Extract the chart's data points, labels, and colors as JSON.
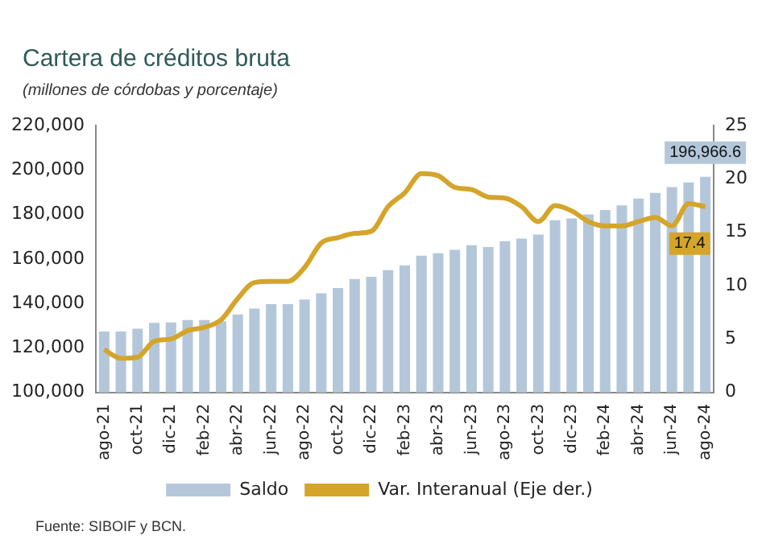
{
  "chart_data": {
    "type": "bar",
    "title": "Cartera de créditos bruta",
    "subtitle": "(millones de córdobas y porcentaje)",
    "categories": [
      "ago-21",
      null,
      "oct-21",
      null,
      "dic-21",
      null,
      "feb-22",
      null,
      "abr-22",
      null,
      "jun-22",
      null,
      "ago-22",
      null,
      "oct-22",
      null,
      "dic-22",
      null,
      "feb-23",
      null,
      "abr-23",
      null,
      "jun-23",
      null,
      "ago-23",
      null,
      "oct-23",
      null,
      "dic-23",
      null,
      "feb-24",
      null,
      "abr-24",
      null,
      "jun-24",
      null,
      "ago-24"
    ],
    "series": [
      {
        "name": "Saldo",
        "type": "bar",
        "color": "#b4c7da",
        "values": [
          127400,
          127400,
          128700,
          131300,
          131500,
          132600,
          132600,
          132000,
          135100,
          137700,
          139700,
          139700,
          141800,
          144600,
          146900,
          151000,
          152000,
          155000,
          157200,
          161500,
          162600,
          164100,
          166200,
          165400,
          168000,
          169200,
          171000,
          177400,
          178200,
          180000,
          182000,
          184100,
          187200,
          189700,
          192300,
          194400,
          196966.6
        ],
        "value_labels": [
          null,
          null,
          null,
          null,
          null,
          null,
          null,
          null,
          null,
          null,
          null,
          null,
          null,
          null,
          null,
          null,
          null,
          null,
          null,
          null,
          null,
          null,
          null,
          null,
          null,
          null,
          null,
          null,
          null,
          null,
          null,
          null,
          null,
          null,
          null,
          null,
          "196,966.6"
        ]
      },
      {
        "name": "Var. Interanual (Eje der.)",
        "type": "line",
        "axis": "y2",
        "color": "#d4a52a",
        "values": [
          4.0,
          3.2,
          3.3,
          4.8,
          5.0,
          5.8,
          6.1,
          6.8,
          8.8,
          10.3,
          10.4,
          10.4,
          11.7,
          14.0,
          14.5,
          14.9,
          15.1,
          17.4,
          18.7,
          20.5,
          20.3,
          19.2,
          19.0,
          18.3,
          18.2,
          17.4,
          16.0,
          17.5,
          17.0,
          16.0,
          15.6,
          15.6,
          16.0,
          16.4,
          15.6,
          17.7,
          17.4
        ],
        "value_labels": [
          null,
          null,
          null,
          null,
          null,
          null,
          null,
          null,
          null,
          null,
          null,
          null,
          null,
          null,
          null,
          null,
          null,
          null,
          null,
          null,
          null,
          null,
          null,
          null,
          null,
          null,
          null,
          null,
          null,
          null,
          null,
          null,
          null,
          null,
          null,
          null,
          "17.4"
        ]
      }
    ],
    "ylim": [
      100000,
      220000
    ],
    "yticks": [
      {
        "value": 100000,
        "label": "100,000"
      },
      {
        "value": 120000,
        "label": "120,000"
      },
      {
        "value": 140000,
        "label": "140,000"
      },
      {
        "value": 160000,
        "label": "160,000"
      },
      {
        "value": 180000,
        "label": "180,000"
      },
      {
        "value": 200000,
        "label": "200,000"
      },
      {
        "value": 220000,
        "label": "220,000"
      }
    ],
    "y2lim": [
      0,
      25
    ],
    "y2ticks": [
      0,
      5,
      10,
      15,
      20,
      25
    ],
    "grid": false,
    "legend": "bottom",
    "marker": "none",
    "line_style": "solid",
    "annotations": [
      "Fuente: SIBOIF y BCN."
    ]
  }
}
